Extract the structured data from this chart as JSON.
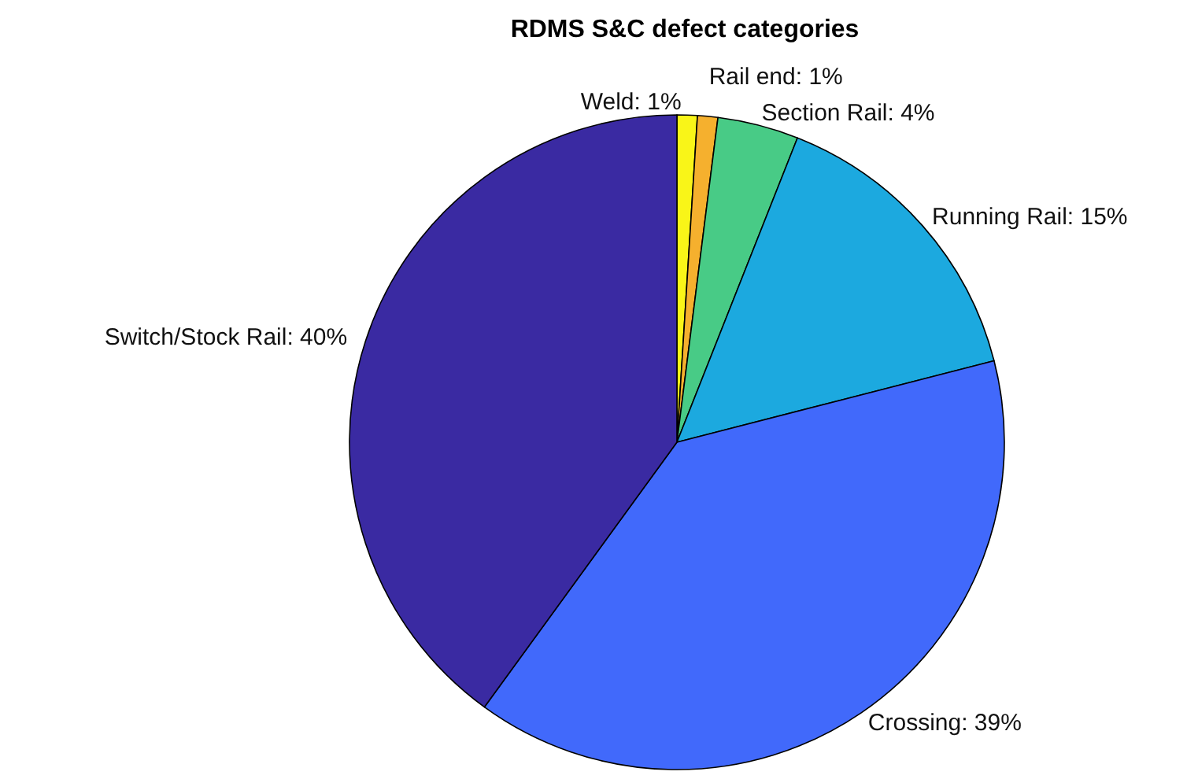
{
  "chart_data": {
    "type": "pie",
    "title": "RDMS S&C defect categories",
    "categories": [
      "Weld",
      "Rail end",
      "Section Rail",
      "Running Rail",
      "Crossing",
      "Switch/Stock Rail"
    ],
    "values": [
      1,
      1,
      4,
      15,
      39,
      40
    ],
    "value_labels": [
      "1%",
      "1%",
      "4%",
      "15%",
      "39%",
      "40%"
    ],
    "colors": [
      "#f9f518",
      "#f5b02e",
      "#48cb86",
      "#1ca9df",
      "#4169fb",
      "#3a2aa2"
    ],
    "legend": false
  }
}
